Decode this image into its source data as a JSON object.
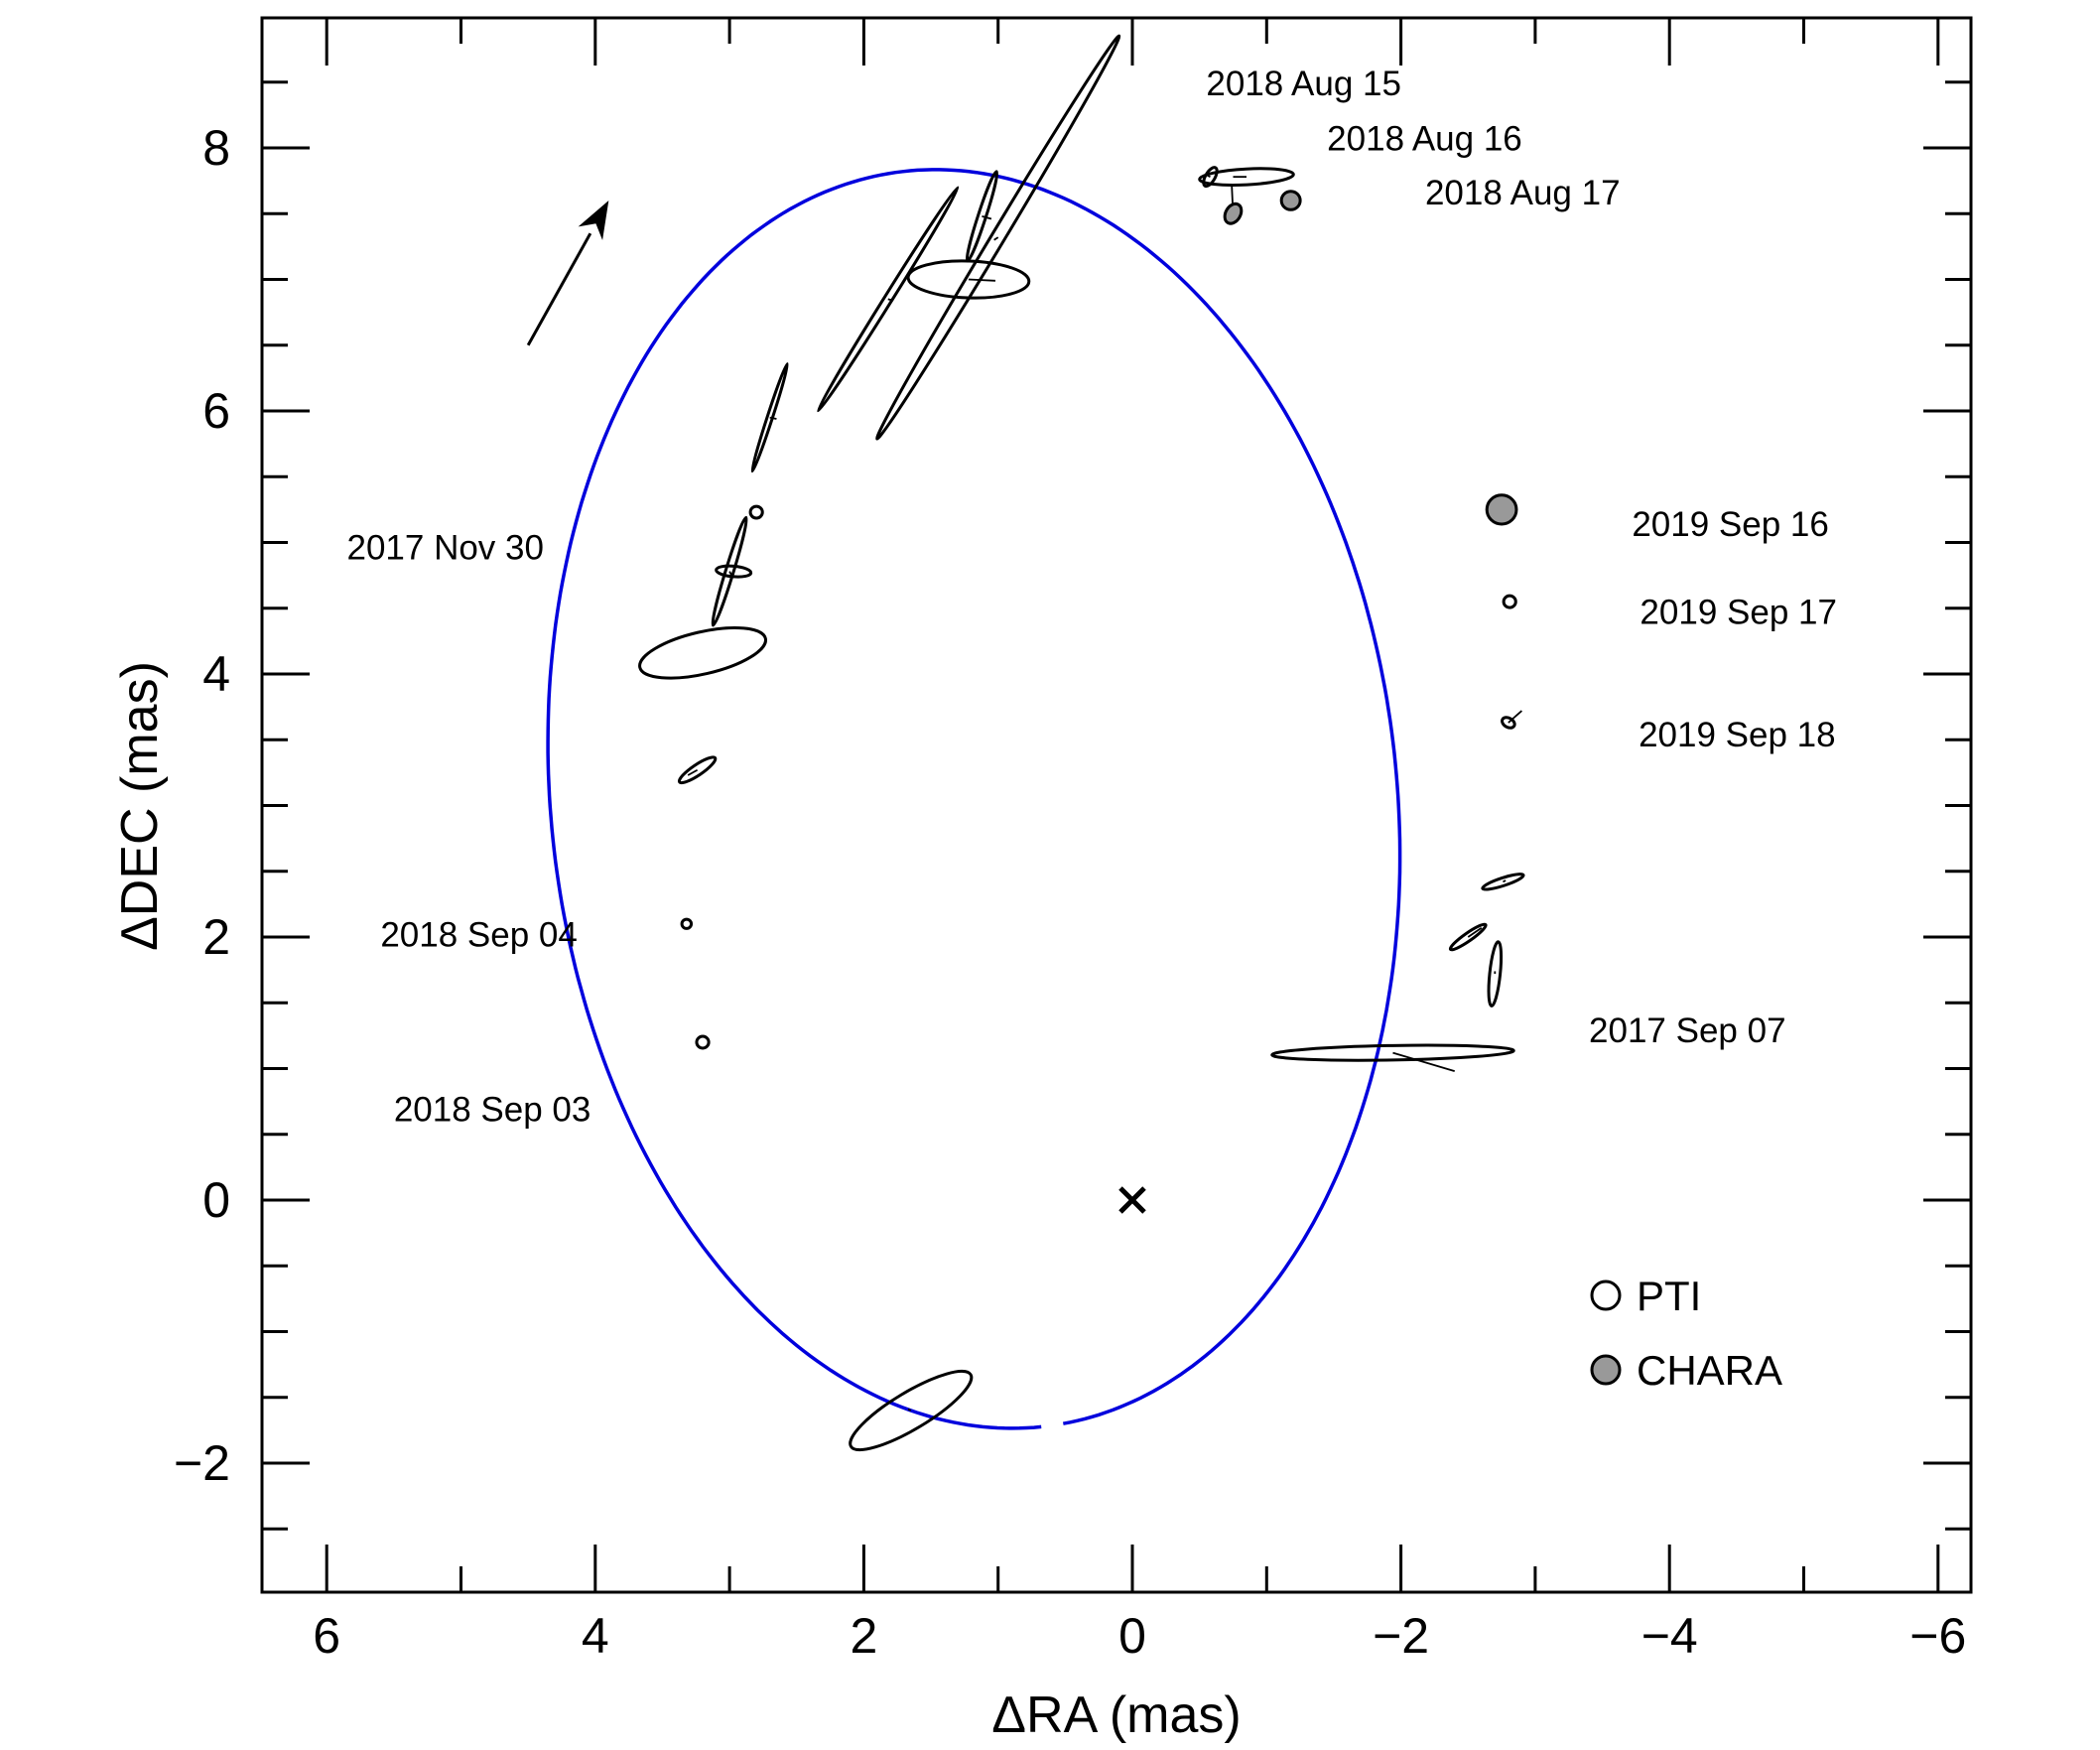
{
  "chart_data": {
    "type": "scatter",
    "title": "",
    "xlabel": "ΔRA (mas)",
    "ylabel": "ΔDEC (mas)",
    "xlim": [
      6.5,
      -6.5
    ],
    "ylim": [
      -3.0,
      8.0
    ],
    "x_reversed": true,
    "grid": false,
    "x_ticks": [
      6,
      4,
      2,
      0,
      -2,
      -4,
      -6
    ],
    "x_tick_labels": [
      "6",
      "4",
      "2",
      "0",
      "−2",
      "−4",
      "−6"
    ],
    "y_ticks": [
      -2,
      0,
      2,
      4,
      6,
      8
    ],
    "y_tick_labels": [
      "−2",
      "0",
      "2",
      "4",
      "6",
      "8"
    ],
    "orbit": {
      "color": "#0000dd",
      "center_x": 1.18,
      "center_y": 3.05,
      "semi_axis_x": 3.15,
      "semi_axis_y": 4.8,
      "rotation_deg": -6,
      "gap_start_deg": 267,
      "gap_end_deg": 270
    },
    "primary": {
      "x": 0.0,
      "y": 0.0,
      "marker": "×"
    },
    "motion_arrow": {
      "from": [
        4.5,
        6.5
      ],
      "to": [
        3.9,
        7.6
      ]
    },
    "series": [
      {
        "name": "PTI",
        "fill": "#ffffff",
        "points": [
          {
            "x": 1.22,
            "y": 7.0,
            "rx": 0.45,
            "ry": 0.14,
            "angle_deg": 2,
            "ox": 1.02,
            "oy": 6.99
          },
          {
            "x": 1.82,
            "y": 6.85,
            "rx": 0.98,
            "ry": 0.03,
            "angle_deg": -58,
            "ox": 1.78,
            "oy": 6.84
          },
          {
            "x": 1.0,
            "y": 7.32,
            "rx": 1.75,
            "ry": 0.05,
            "angle_deg": -59,
            "ox": 1.03,
            "oy": 7.3
          },
          {
            "x": 1.12,
            "y": 7.48,
            "rx": 0.35,
            "ry": 0.03,
            "angle_deg": -72,
            "ox": 1.05,
            "oy": 7.46
          },
          {
            "x": 2.7,
            "y": 5.95,
            "rx": 0.42,
            "ry": 0.02,
            "angle_deg": -72,
            "ox": 2.65,
            "oy": 5.94
          },
          {
            "x": 3.0,
            "y": 4.78,
            "rx": 0.42,
            "ry": 0.03,
            "angle_deg": -73,
            "ox": 2.98,
            "oy": 4.74
          },
          {
            "x": 2.97,
            "y": 4.78,
            "rx": 0.13,
            "ry": 0.04,
            "angle_deg": 5,
            "ox": 2.97,
            "oy": 4.78
          },
          {
            "x": 3.2,
            "y": 4.16,
            "rx": 0.48,
            "ry": 0.16,
            "angle_deg": -13,
            "ox": 3.2,
            "oy": 4.16
          },
          {
            "x": 3.24,
            "y": 3.27,
            "rx": 0.16,
            "ry": 0.04,
            "angle_deg": -34,
            "ox": 3.31,
            "oy": 3.23
          },
          {
            "x": 1.65,
            "y": -1.6,
            "rx": 0.52,
            "ry": 0.14,
            "angle_deg": -31,
            "ox": 1.67,
            "oy": -1.59
          },
          {
            "x": -0.58,
            "y": 7.78,
            "rx": 0.035,
            "ry": 0.08,
            "angle_deg": 30,
            "ox": -0.56,
            "oy": 7.79
          },
          {
            "x": -0.85,
            "y": 7.78,
            "rx": 0.35,
            "ry": 0.06,
            "angle_deg": -3,
            "ox": -0.75,
            "oy": 7.78
          },
          {
            "x": -2.76,
            "y": 2.42,
            "rx": 0.16,
            "ry": 0.03,
            "angle_deg": -18,
            "ox": -2.78,
            "oy": 2.43
          },
          {
            "x": -2.5,
            "y": 2.0,
            "rx": 0.16,
            "ry": 0.03,
            "angle_deg": -35,
            "ox": -2.6,
            "oy": 2.07
          },
          {
            "x": -2.7,
            "y": 1.72,
            "rx": 0.24,
            "ry": 0.04,
            "angle_deg": -84,
            "ox": -2.7,
            "oy": 1.74
          },
          {
            "x": -1.94,
            "y": 1.12,
            "rx": 0.9,
            "ry": 0.055,
            "angle_deg": -1,
            "ox": -2.4,
            "oy": 0.98
          }
        ]
      },
      {
        "name": "CHARA",
        "fill": "#999999",
        "points": [
          {
            "x": -0.75,
            "y": 7.5,
            "rx": 0.055,
            "ry": 0.08,
            "angle_deg": 30,
            "ox": -0.74,
            "oy": 7.72
          },
          {
            "x": -1.18,
            "y": 7.6,
            "rx": 0.07,
            "ry": 0.07,
            "angle_deg": 0,
            "ox": -1.16,
            "oy": 7.59
          },
          {
            "x": -2.75,
            "y": 5.25,
            "rx": 0.11,
            "ry": 0.11,
            "angle_deg": 0,
            "ox": -2.73,
            "oy": 5.24
          }
        ]
      },
      {
        "name": "",
        "fill": "#ffffff",
        "points": [
          {
            "x": 2.8,
            "y": 5.23,
            "rx": 0.045,
            "ry": 0.045,
            "angle_deg": 0,
            "ox": 2.8,
            "oy": 5.23
          },
          {
            "x": 3.32,
            "y": 2.1,
            "rx": 0.035,
            "ry": 0.035,
            "angle_deg": 0,
            "ox": 3.32,
            "oy": 2.1
          },
          {
            "x": 3.2,
            "y": 1.2,
            "rx": 0.045,
            "ry": 0.045,
            "angle_deg": 0,
            "ox": 3.2,
            "oy": 1.2
          },
          {
            "x": -2.81,
            "y": 4.55,
            "rx": 0.045,
            "ry": 0.045,
            "angle_deg": 0,
            "ox": -2.81,
            "oy": 4.55
          },
          {
            "x": -2.8,
            "y": 3.63,
            "rx": 0.05,
            "ry": 0.035,
            "angle_deg": 30,
            "ox": -2.9,
            "oy": 3.72
          }
        ]
      }
    ],
    "annotations": [
      {
        "text": "2018 Aug 15",
        "x": -0.55,
        "y": 8.4
      },
      {
        "text": "2018 Aug 16",
        "x": -1.45,
        "y": 7.98
      },
      {
        "text": "2018 Aug 17",
        "x": -2.18,
        "y": 7.57
      },
      {
        "text": "2019 Sep 16",
        "x": -3.72,
        "y": 5.05
      },
      {
        "text": "2019 Sep 17",
        "x": -3.78,
        "y": 4.38
      },
      {
        "text": "2019 Sep 18",
        "x": -3.77,
        "y": 3.45
      },
      {
        "text": "2017 Sep 07",
        "x": -3.4,
        "y": 1.2
      },
      {
        "text": "2017 Nov 30",
        "x": 5.85,
        "y": 4.87
      },
      {
        "text": "2018 Sep 04",
        "x": 5.6,
        "y": 1.93
      },
      {
        "text": "2018 Sep 03",
        "x": 5.5,
        "y": 0.6
      }
    ],
    "legend": {
      "position": "bottom-right",
      "entries": [
        {
          "label": "PTI",
          "fill": "#ffffff"
        },
        {
          "label": "CHARA",
          "fill": "#999999"
        }
      ]
    }
  }
}
